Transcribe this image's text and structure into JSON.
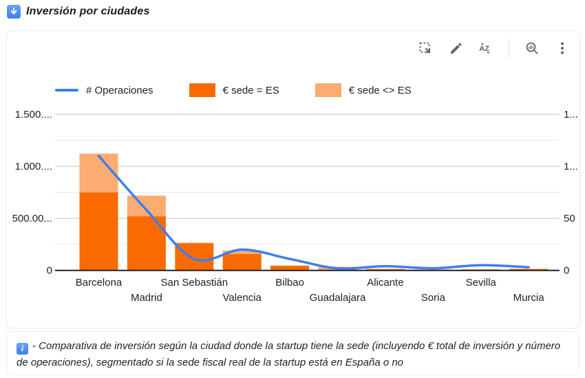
{
  "header": {
    "title": "Inversión por ciudades",
    "icon": "blue-down-arrow-icon"
  },
  "toolbar": {
    "icons": [
      "marquee-select-icon",
      "edit-pencil-icon",
      "sort-az-icon",
      "explore-zoom-icon",
      "more-vert-icon"
    ]
  },
  "colors": {
    "bar_es": "#fa6a00",
    "bar_non_es": "#fbac71",
    "line_ops": "#3d7ef3",
    "grid_major": "#d6d6d6",
    "grid_minor": "#e9e9e9",
    "axis_line": "#212121",
    "axis_text": "#202124",
    "icon_gray": "#5f6368"
  },
  "chart_data": {
    "type": "bar",
    "subtype": "stacked-bars-with-line",
    "categories": [
      "Barcelona",
      "Madrid",
      "San Sebastián",
      "Valencia",
      "Bilbao",
      "Guadalajara",
      "Alicante",
      "Soria",
      "Sevilla",
      "Murcia"
    ],
    "series": [
      {
        "name": "€ sede = ES",
        "type": "bar",
        "axis": "left",
        "color": "#fa6a00",
        "values": [
          750,
          520,
          262,
          158,
          45,
          4,
          14,
          6,
          10,
          12
        ]
      },
      {
        "name": "€ sede <> ES",
        "type": "bar",
        "axis": "left",
        "color": "#fbac71",
        "values": [
          372,
          198,
          4,
          32,
          3,
          30,
          2,
          3,
          2,
          5
        ]
      },
      {
        "name": "# Operaciones",
        "type": "line",
        "axis": "right",
        "color": "#3d7ef3",
        "values": [
          110,
          58,
          11,
          20,
          11,
          2,
          4,
          2,
          5,
          3
        ]
      }
    ],
    "left_axis": {
      "max": 1500,
      "minor_step": 250,
      "ticks": [
        0,
        500,
        1000,
        1500
      ],
      "tick_labels": [
        "0",
        "500.00...",
        "1.000....",
        "1.500...."
      ]
    },
    "right_axis": {
      "max": 150,
      "ticks": [
        0,
        50,
        100,
        150
      ],
      "tick_labels": [
        "0",
        "50",
        "1...",
        "1..."
      ]
    },
    "legend_position": "top",
    "grid": true
  },
  "footer": {
    "text": "- Comparativa de inversión según la ciudad donde la startup tiene la sede (incluyendo € total de inversión y número de operaciones), segmentado si la sede fiscal real de la startup está en España o no"
  }
}
